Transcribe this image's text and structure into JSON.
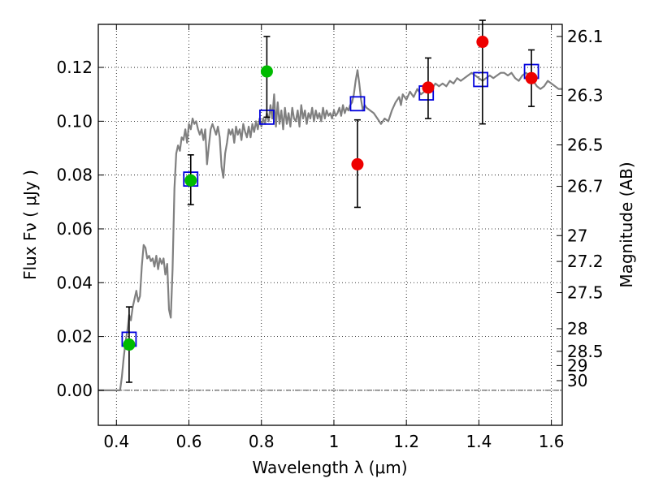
{
  "chart_data": {
    "type": "scatter",
    "xlabel": "Wavelength  λ (μm)",
    "ylabel": "Flux  Fν  ( μJy )",
    "ylabel_right": "Magnitude (AB)",
    "xlim": [
      0.35,
      1.63
    ],
    "ylim": [
      -0.013,
      0.136
    ],
    "x_ticks": [
      0.4,
      0.6,
      0.8,
      1.0,
      1.2,
      1.4,
      1.6
    ],
    "x_tick_labels": [
      "0.4",
      "0.6",
      "0.8",
      "1",
      "1.2",
      "1.4",
      "1.6"
    ],
    "y_ticks": [
      0.0,
      0.02,
      0.04,
      0.06,
      0.08,
      0.1,
      0.12
    ],
    "y_tick_labels": [
      "0.00",
      "0.02",
      "0.04",
      "0.06",
      "0.08",
      "0.10",
      "0.12"
    ],
    "right_ticks": [
      {
        "label": "26.1",
        "flux": 0.1315
      },
      {
        "label": "26.3",
        "flux": 0.1096
      },
      {
        "label": "26.5",
        "flux": 0.0912
      },
      {
        "label": "26.7",
        "flux": 0.0758
      },
      {
        "label": "27",
        "flux": 0.0575
      },
      {
        "label": "27.2",
        "flux": 0.0479
      },
      {
        "label": "27.5",
        "flux": 0.0363
      },
      {
        "label": "28",
        "flux": 0.0229
      },
      {
        "label": "28.5",
        "flux": 0.0145
      },
      {
        "label": "29",
        "flux": 0.0092
      },
      {
        "label": "30",
        "flux": 0.0036
      }
    ],
    "grid": true,
    "colors": {
      "model": "#808080",
      "green": "#00bb00",
      "red": "#ee0000",
      "box": "#0000dd",
      "error": "#000000"
    },
    "series": [
      {
        "kind": "line",
        "points": [
          [
            0.35,
            0.0
          ],
          [
            0.4,
            0.0
          ],
          [
            0.41,
            0.0
          ],
          [
            0.415,
            0.005
          ],
          [
            0.42,
            0.012
          ],
          [
            0.425,
            0.018
          ],
          [
            0.43,
            0.022
          ],
          [
            0.435,
            0.028
          ],
          [
            0.44,
            0.026
          ],
          [
            0.445,
            0.031
          ],
          [
            0.45,
            0.034
          ],
          [
            0.455,
            0.037
          ],
          [
            0.46,
            0.033
          ],
          [
            0.465,
            0.035
          ],
          [
            0.47,
            0.046
          ],
          [
            0.475,
            0.054
          ],
          [
            0.48,
            0.053
          ],
          [
            0.485,
            0.049
          ],
          [
            0.49,
            0.05
          ],
          [
            0.495,
            0.048
          ],
          [
            0.5,
            0.049
          ],
          [
            0.505,
            0.046
          ],
          [
            0.51,
            0.05
          ],
          [
            0.515,
            0.045
          ],
          [
            0.52,
            0.049
          ],
          [
            0.525,
            0.047
          ],
          [
            0.53,
            0.049
          ],
          [
            0.535,
            0.043
          ],
          [
            0.54,
            0.047
          ],
          [
            0.545,
            0.03
          ],
          [
            0.55,
            0.027
          ],
          [
            0.555,
            0.045
          ],
          [
            0.56,
            0.075
          ],
          [
            0.565,
            0.088
          ],
          [
            0.57,
            0.091
          ],
          [
            0.575,
            0.089
          ],
          [
            0.58,
            0.094
          ],
          [
            0.585,
            0.093
          ],
          [
            0.59,
            0.097
          ],
          [
            0.595,
            0.092
          ],
          [
            0.6,
            0.099
          ],
          [
            0.605,
            0.097
          ],
          [
            0.61,
            0.101
          ],
          [
            0.615,
            0.099
          ],
          [
            0.62,
            0.1
          ],
          [
            0.625,
            0.097
          ],
          [
            0.63,
            0.095
          ],
          [
            0.635,
            0.097
          ],
          [
            0.64,
            0.093
          ],
          [
            0.645,
            0.097
          ],
          [
            0.65,
            0.084
          ],
          [
            0.655,
            0.091
          ],
          [
            0.66,
            0.097
          ],
          [
            0.665,
            0.099
          ],
          [
            0.67,
            0.097
          ],
          [
            0.675,
            0.095
          ],
          [
            0.68,
            0.098
          ],
          [
            0.685,
            0.094
          ],
          [
            0.69,
            0.083
          ],
          [
            0.695,
            0.079
          ],
          [
            0.7,
            0.088
          ],
          [
            0.705,
            0.092
          ],
          [
            0.71,
            0.097
          ],
          [
            0.715,
            0.095
          ],
          [
            0.72,
            0.097
          ],
          [
            0.725,
            0.092
          ],
          [
            0.73,
            0.098
          ],
          [
            0.735,
            0.095
          ],
          [
            0.74,
            0.097
          ],
          [
            0.745,
            0.093
          ],
          [
            0.75,
            0.099
          ],
          [
            0.755,
            0.096
          ],
          [
            0.76,
            0.094
          ],
          [
            0.765,
            0.098
          ],
          [
            0.77,
            0.094
          ],
          [
            0.775,
            0.099
          ],
          [
            0.78,
            0.096
          ],
          [
            0.785,
            0.1
          ],
          [
            0.79,
            0.097
          ],
          [
            0.795,
            0.101
          ],
          [
            0.8,
            0.098
          ],
          [
            0.805,
            0.101
          ],
          [
            0.81,
            0.099
          ],
          [
            0.815,
            0.103
          ],
          [
            0.82,
            0.1
          ],
          [
            0.825,
            0.106
          ],
          [
            0.83,
            0.101
          ],
          [
            0.835,
            0.11
          ],
          [
            0.84,
            0.098
          ],
          [
            0.845,
            0.107
          ],
          [
            0.85,
            0.099
          ],
          [
            0.855,
            0.104
          ],
          [
            0.86,
            0.097
          ],
          [
            0.865,
            0.105
          ],
          [
            0.87,
            0.099
          ],
          [
            0.875,
            0.103
          ],
          [
            0.88,
            0.098
          ],
          [
            0.885,
            0.105
          ],
          [
            0.89,
            0.101
          ],
          [
            0.895,
            0.1
          ],
          [
            0.9,
            0.104
          ],
          [
            0.905,
            0.098
          ],
          [
            0.91,
            0.106
          ],
          [
            0.915,
            0.101
          ],
          [
            0.92,
            0.104
          ],
          [
            0.925,
            0.099
          ],
          [
            0.93,
            0.103
          ],
          [
            0.935,
            0.101
          ],
          [
            0.94,
            0.105
          ],
          [
            0.945,
            0.1
          ],
          [
            0.95,
            0.104
          ],
          [
            0.955,
            0.101
          ],
          [
            0.96,
            0.103
          ],
          [
            0.965,
            0.1
          ],
          [
            0.97,
            0.105
          ],
          [
            0.975,
            0.101
          ],
          [
            0.98,
            0.104
          ],
          [
            0.985,
            0.102
          ],
          [
            0.99,
            0.103
          ],
          [
            0.995,
            0.101
          ],
          [
            1.0,
            0.104
          ],
          [
            1.005,
            0.102
          ],
          [
            1.01,
            0.103
          ],
          [
            1.015,
            0.105
          ],
          [
            1.02,
            0.102
          ],
          [
            1.025,
            0.106
          ],
          [
            1.03,
            0.103
          ],
          [
            1.035,
            0.105
          ],
          [
            1.04,
            0.104
          ],
          [
            1.045,
            0.106
          ],
          [
            1.05,
            0.107
          ],
          [
            1.055,
            0.11
          ],
          [
            1.06,
            0.115
          ],
          [
            1.065,
            0.119
          ],
          [
            1.07,
            0.114
          ],
          [
            1.075,
            0.108
          ],
          [
            1.08,
            0.104
          ],
          [
            1.085,
            0.106
          ],
          [
            1.09,
            0.105
          ],
          [
            1.1,
            0.104
          ],
          [
            1.11,
            0.103
          ],
          [
            1.12,
            0.101
          ],
          [
            1.13,
            0.099
          ],
          [
            1.14,
            0.101
          ],
          [
            1.15,
            0.1
          ],
          [
            1.16,
            0.104
          ],
          [
            1.17,
            0.107
          ],
          [
            1.18,
            0.109
          ],
          [
            1.185,
            0.106
          ],
          [
            1.19,
            0.11
          ],
          [
            1.2,
            0.108
          ],
          [
            1.21,
            0.111
          ],
          [
            1.22,
            0.109
          ],
          [
            1.23,
            0.112
          ],
          [
            1.24,
            0.11
          ],
          [
            1.25,
            0.111
          ],
          [
            1.26,
            0.113
          ],
          [
            1.27,
            0.112
          ],
          [
            1.28,
            0.114
          ],
          [
            1.29,
            0.113
          ],
          [
            1.3,
            0.114
          ],
          [
            1.31,
            0.113
          ],
          [
            1.32,
            0.115
          ],
          [
            1.33,
            0.114
          ],
          [
            1.34,
            0.116
          ],
          [
            1.35,
            0.115
          ],
          [
            1.36,
            0.116
          ],
          [
            1.37,
            0.117
          ],
          [
            1.38,
            0.118
          ],
          [
            1.39,
            0.117
          ],
          [
            1.4,
            0.116
          ],
          [
            1.41,
            0.115
          ],
          [
            1.42,
            0.116
          ],
          [
            1.43,
            0.117
          ],
          [
            1.44,
            0.116
          ],
          [
            1.45,
            0.117
          ],
          [
            1.46,
            0.118
          ],
          [
            1.47,
            0.118
          ],
          [
            1.48,
            0.117
          ],
          [
            1.49,
            0.118
          ],
          [
            1.5,
            0.116
          ],
          [
            1.51,
            0.115
          ],
          [
            1.52,
            0.117
          ],
          [
            1.53,
            0.118
          ],
          [
            1.54,
            0.117
          ],
          [
            1.55,
            0.115
          ],
          [
            1.56,
            0.113
          ],
          [
            1.57,
            0.112
          ],
          [
            1.58,
            0.113
          ],
          [
            1.59,
            0.115
          ],
          [
            1.6,
            0.114
          ],
          [
            1.61,
            0.113
          ],
          [
            1.62,
            0.112
          ],
          [
            1.63,
            0.112
          ]
        ]
      },
      {
        "kind": "box",
        "points": [
          [
            0.435,
            0.019
          ],
          [
            0.605,
            0.0785
          ],
          [
            0.815,
            0.1015
          ],
          [
            1.065,
            0.1065
          ],
          [
            1.255,
            0.1105
          ],
          [
            1.405,
            0.1155
          ],
          [
            1.545,
            0.1185
          ]
        ]
      },
      {
        "kind": "errorbar",
        "points": [
          [
            0.435,
            0.003,
            0.031
          ],
          [
            0.605,
            0.069,
            0.0875
          ],
          [
            0.815,
            0.1015,
            0.1315
          ],
          [
            1.065,
            0.068,
            0.1005
          ],
          [
            1.26,
            0.101,
            0.1235
          ],
          [
            1.41,
            0.099,
            0.1375
          ],
          [
            1.545,
            0.1055,
            0.1265
          ]
        ]
      },
      {
        "kind": "green-dot",
        "points": [
          [
            0.435,
            0.017
          ],
          [
            0.605,
            0.078
          ],
          [
            0.815,
            0.1185
          ]
        ]
      },
      {
        "kind": "red-dot",
        "points": [
          [
            1.065,
            0.084
          ],
          [
            1.26,
            0.1125
          ],
          [
            1.41,
            0.1295
          ],
          [
            1.545,
            0.116
          ]
        ]
      }
    ]
  }
}
